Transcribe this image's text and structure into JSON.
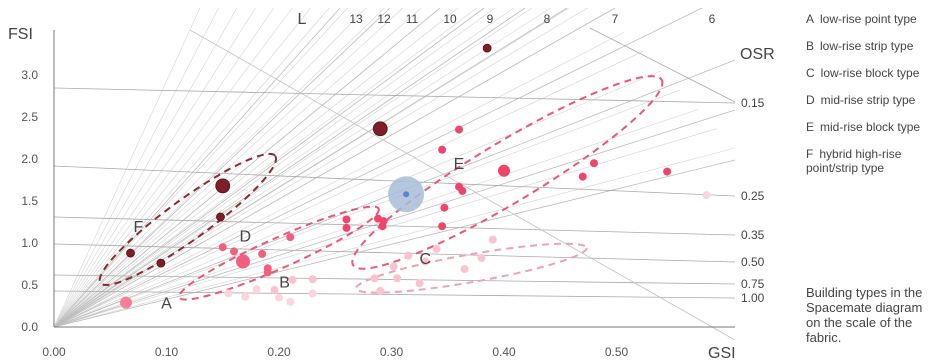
{
  "chart_data": {
    "type": "scatter",
    "xlabel": "GSI",
    "ylabel": "FSI",
    "xlim": [
      0,
      0.6
    ],
    "ylim": [
      0,
      3.4
    ],
    "x_ticks": [
      "0.00",
      "0.10",
      "0.20",
      "0.30",
      "0.40",
      "0.50"
    ],
    "y_ticks": [
      "0.0",
      "0.5",
      "1.0",
      "1.5",
      "2.0",
      "2.5",
      "3.0"
    ],
    "grid": false,
    "l_lines": {
      "name": "L",
      "labels": [
        "13",
        "12",
        "11",
        "10",
        "9",
        "8",
        "7",
        "6"
      ]
    },
    "osr_lines": {
      "name": "OSR",
      "labels": [
        "0.15",
        "0.25",
        "0.35",
        "0.50",
        "0.75",
        "1.00"
      ]
    },
    "clusters": [
      {
        "key": "A",
        "label_at": [
          0.1,
          0.22
        ]
      },
      {
        "key": "B",
        "label_at": [
          0.205,
          0.47
        ]
      },
      {
        "key": "C",
        "label_at": [
          0.33,
          0.75
        ]
      },
      {
        "key": "D",
        "label_at": [
          0.17,
          1.02
        ]
      },
      {
        "key": "E",
        "label_at": [
          0.36,
          1.88
        ]
      },
      {
        "key": "F",
        "label_at": [
          0.075,
          1.13
        ]
      }
    ],
    "regions": [
      {
        "cluster": "F",
        "cx": 0.119,
        "cy": 1.28,
        "rx": 0.096,
        "ry": 0.24,
        "angle": -36,
        "color": "#8a2a32"
      },
      {
        "cluster": "D",
        "cx": 0.2,
        "cy": 0.88,
        "rx": 0.097,
        "ry": 0.18,
        "angle": -24,
        "color": "#ee5577"
      },
      {
        "cluster": "C",
        "cx": 0.371,
        "cy": 0.7,
        "rx": 0.104,
        "ry": 0.165,
        "angle": -10,
        "color": "#f2a0b4"
      },
      {
        "cluster": "E",
        "cx": 0.403,
        "cy": 1.84,
        "rx": 0.16,
        "ry": 0.36,
        "angle": -31,
        "color": "#ee5577"
      }
    ],
    "series": [
      {
        "name": "F",
        "color": "#7e1e27",
        "points": [
          {
            "x": 0.385,
            "y": 3.32,
            "size": 4
          },
          {
            "x": 0.29,
            "y": 2.36,
            "size": 7
          },
          {
            "x": 0.15,
            "y": 1.68,
            "size": 7
          },
          {
            "x": 0.148,
            "y": 1.31,
            "size": 4
          },
          {
            "x": 0.095,
            "y": 0.76,
            "size": 4
          },
          {
            "x": 0.068,
            "y": 0.88,
            "size": 4
          }
        ]
      },
      {
        "name": "E",
        "color": "#f0456a",
        "points": [
          {
            "x": 0.36,
            "y": 2.35,
            "size": 4
          },
          {
            "x": 0.345,
            "y": 2.11,
            "size": 4
          },
          {
            "x": 0.4,
            "y": 1.86,
            "size": 6
          },
          {
            "x": 0.48,
            "y": 1.95,
            "size": 4
          },
          {
            "x": 0.47,
            "y": 1.79,
            "size": 4
          },
          {
            "x": 0.545,
            "y": 1.85,
            "size": 4
          },
          {
            "x": 0.36,
            "y": 1.67,
            "size": 4
          },
          {
            "x": 0.363,
            "y": 1.62,
            "size": 4
          },
          {
            "x": 0.347,
            "y": 1.42,
            "size": 4
          },
          {
            "x": 0.26,
            "y": 1.28,
            "size": 4
          },
          {
            "x": 0.26,
            "y": 1.18,
            "size": 4
          },
          {
            "x": 0.288,
            "y": 1.29,
            "size": 4
          },
          {
            "x": 0.293,
            "y": 1.26,
            "size": 4
          },
          {
            "x": 0.292,
            "y": 1.2,
            "size": 4
          },
          {
            "x": 0.345,
            "y": 1.2,
            "size": 4
          }
        ]
      },
      {
        "name": "D",
        "color": "#f0607e",
        "points": [
          {
            "x": 0.21,
            "y": 1.07,
            "size": 4
          },
          {
            "x": 0.15,
            "y": 0.95,
            "size": 4
          },
          {
            "x": 0.16,
            "y": 0.9,
            "size": 4
          },
          {
            "x": 0.185,
            "y": 0.87,
            "size": 4
          },
          {
            "x": 0.168,
            "y": 0.78,
            "size": 7
          },
          {
            "x": 0.19,
            "y": 0.7,
            "size": 4
          },
          {
            "x": 0.19,
            "y": 0.65,
            "size": 4
          }
        ]
      },
      {
        "name": "C",
        "color": "#f8c4d0",
        "points": [
          {
            "x": 0.39,
            "y": 1.04,
            "size": 4
          },
          {
            "x": 0.34,
            "y": 0.93,
            "size": 4
          },
          {
            "x": 0.38,
            "y": 0.82,
            "size": 4
          },
          {
            "x": 0.315,
            "y": 0.85,
            "size": 4
          },
          {
            "x": 0.33,
            "y": 0.78,
            "size": 4
          },
          {
            "x": 0.365,
            "y": 0.69,
            "size": 4
          },
          {
            "x": 0.302,
            "y": 0.72,
            "size": 4
          },
          {
            "x": 0.285,
            "y": 0.58,
            "size": 4
          },
          {
            "x": 0.305,
            "y": 0.58,
            "size": 4
          },
          {
            "x": 0.325,
            "y": 0.52,
            "size": 4
          },
          {
            "x": 0.29,
            "y": 0.43,
            "size": 4
          },
          {
            "x": 0.23,
            "y": 0.57,
            "size": 4
          },
          {
            "x": 0.212,
            "y": 0.56,
            "size": 4
          },
          {
            "x": 0.196,
            "y": 0.44,
            "size": 4
          }
        ]
      },
      {
        "name": "B",
        "color": "#fbd5de",
        "points": [
          {
            "x": 0.58,
            "y": 1.57,
            "size": 4
          },
          {
            "x": 0.155,
            "y": 0.4,
            "size": 4
          },
          {
            "x": 0.17,
            "y": 0.36,
            "size": 4
          },
          {
            "x": 0.2,
            "y": 0.35,
            "size": 4
          },
          {
            "x": 0.21,
            "y": 0.3,
            "size": 4
          },
          {
            "x": 0.23,
            "y": 0.4,
            "size": 4
          },
          {
            "x": 0.18,
            "y": 0.45,
            "size": 4
          }
        ]
      },
      {
        "name": "A",
        "color": "#f87f9c",
        "points": [
          {
            "x": 0.064,
            "y": 0.29,
            "size": 6
          }
        ]
      },
      {
        "name": "highlight",
        "color": "#a8bcd9",
        "center_color": "#5b86c0",
        "points": [
          {
            "x": 0.313,
            "y": 1.58,
            "size": 18
          }
        ]
      }
    ]
  },
  "legend": {
    "items": [
      {
        "key": "A",
        "text": "low-rise point type"
      },
      {
        "key": "B",
        "text": "low-rise strip type"
      },
      {
        "key": "C",
        "text": "low-rise block type"
      },
      {
        "key": "D",
        "text": "mid-rise strip type"
      },
      {
        "key": "E",
        "text": "mid-rise block type"
      },
      {
        "key": "F",
        "text": "hybrid high-rise point/strip type"
      }
    ]
  },
  "caption": "Building types in the Spacemate diagram on the scale of the fabric."
}
